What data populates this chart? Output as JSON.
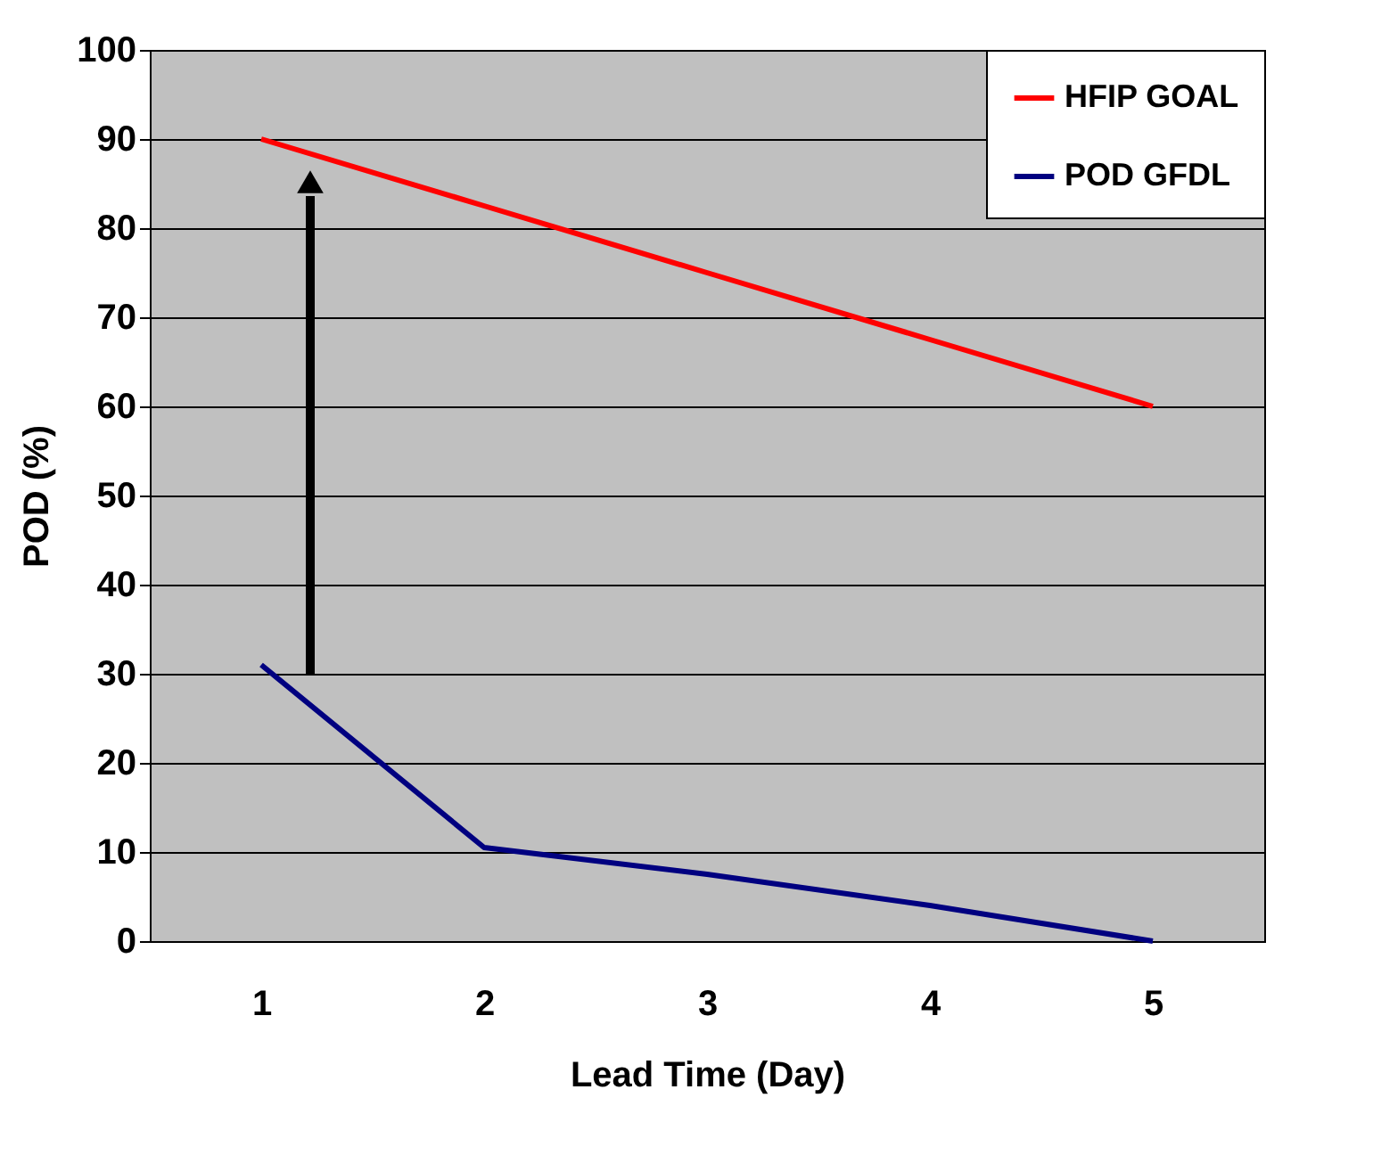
{
  "chart_data": {
    "type": "line",
    "xlabel": "Lead Time (Day)",
    "ylabel": "POD (%)",
    "x": [
      1,
      2,
      3,
      4,
      5
    ],
    "xlim": [
      0.5,
      5.5
    ],
    "xticks": [
      1,
      2,
      3,
      4,
      5
    ],
    "ylim": [
      0,
      100
    ],
    "yticks": [
      0,
      10,
      20,
      30,
      40,
      50,
      60,
      70,
      80,
      90,
      100
    ],
    "series": [
      {
        "name": "HFIP GOAL",
        "color": "#ff0000",
        "values": [
          90,
          82.5,
          75,
          67.5,
          60
        ]
      },
      {
        "name": "POD GFDL",
        "color": "#000080",
        "values": [
          31,
          10.5,
          7.5,
          4,
          0
        ]
      }
    ],
    "grid": "y",
    "legend": "top right",
    "marker": "none",
    "line_style": "solid"
  }
}
